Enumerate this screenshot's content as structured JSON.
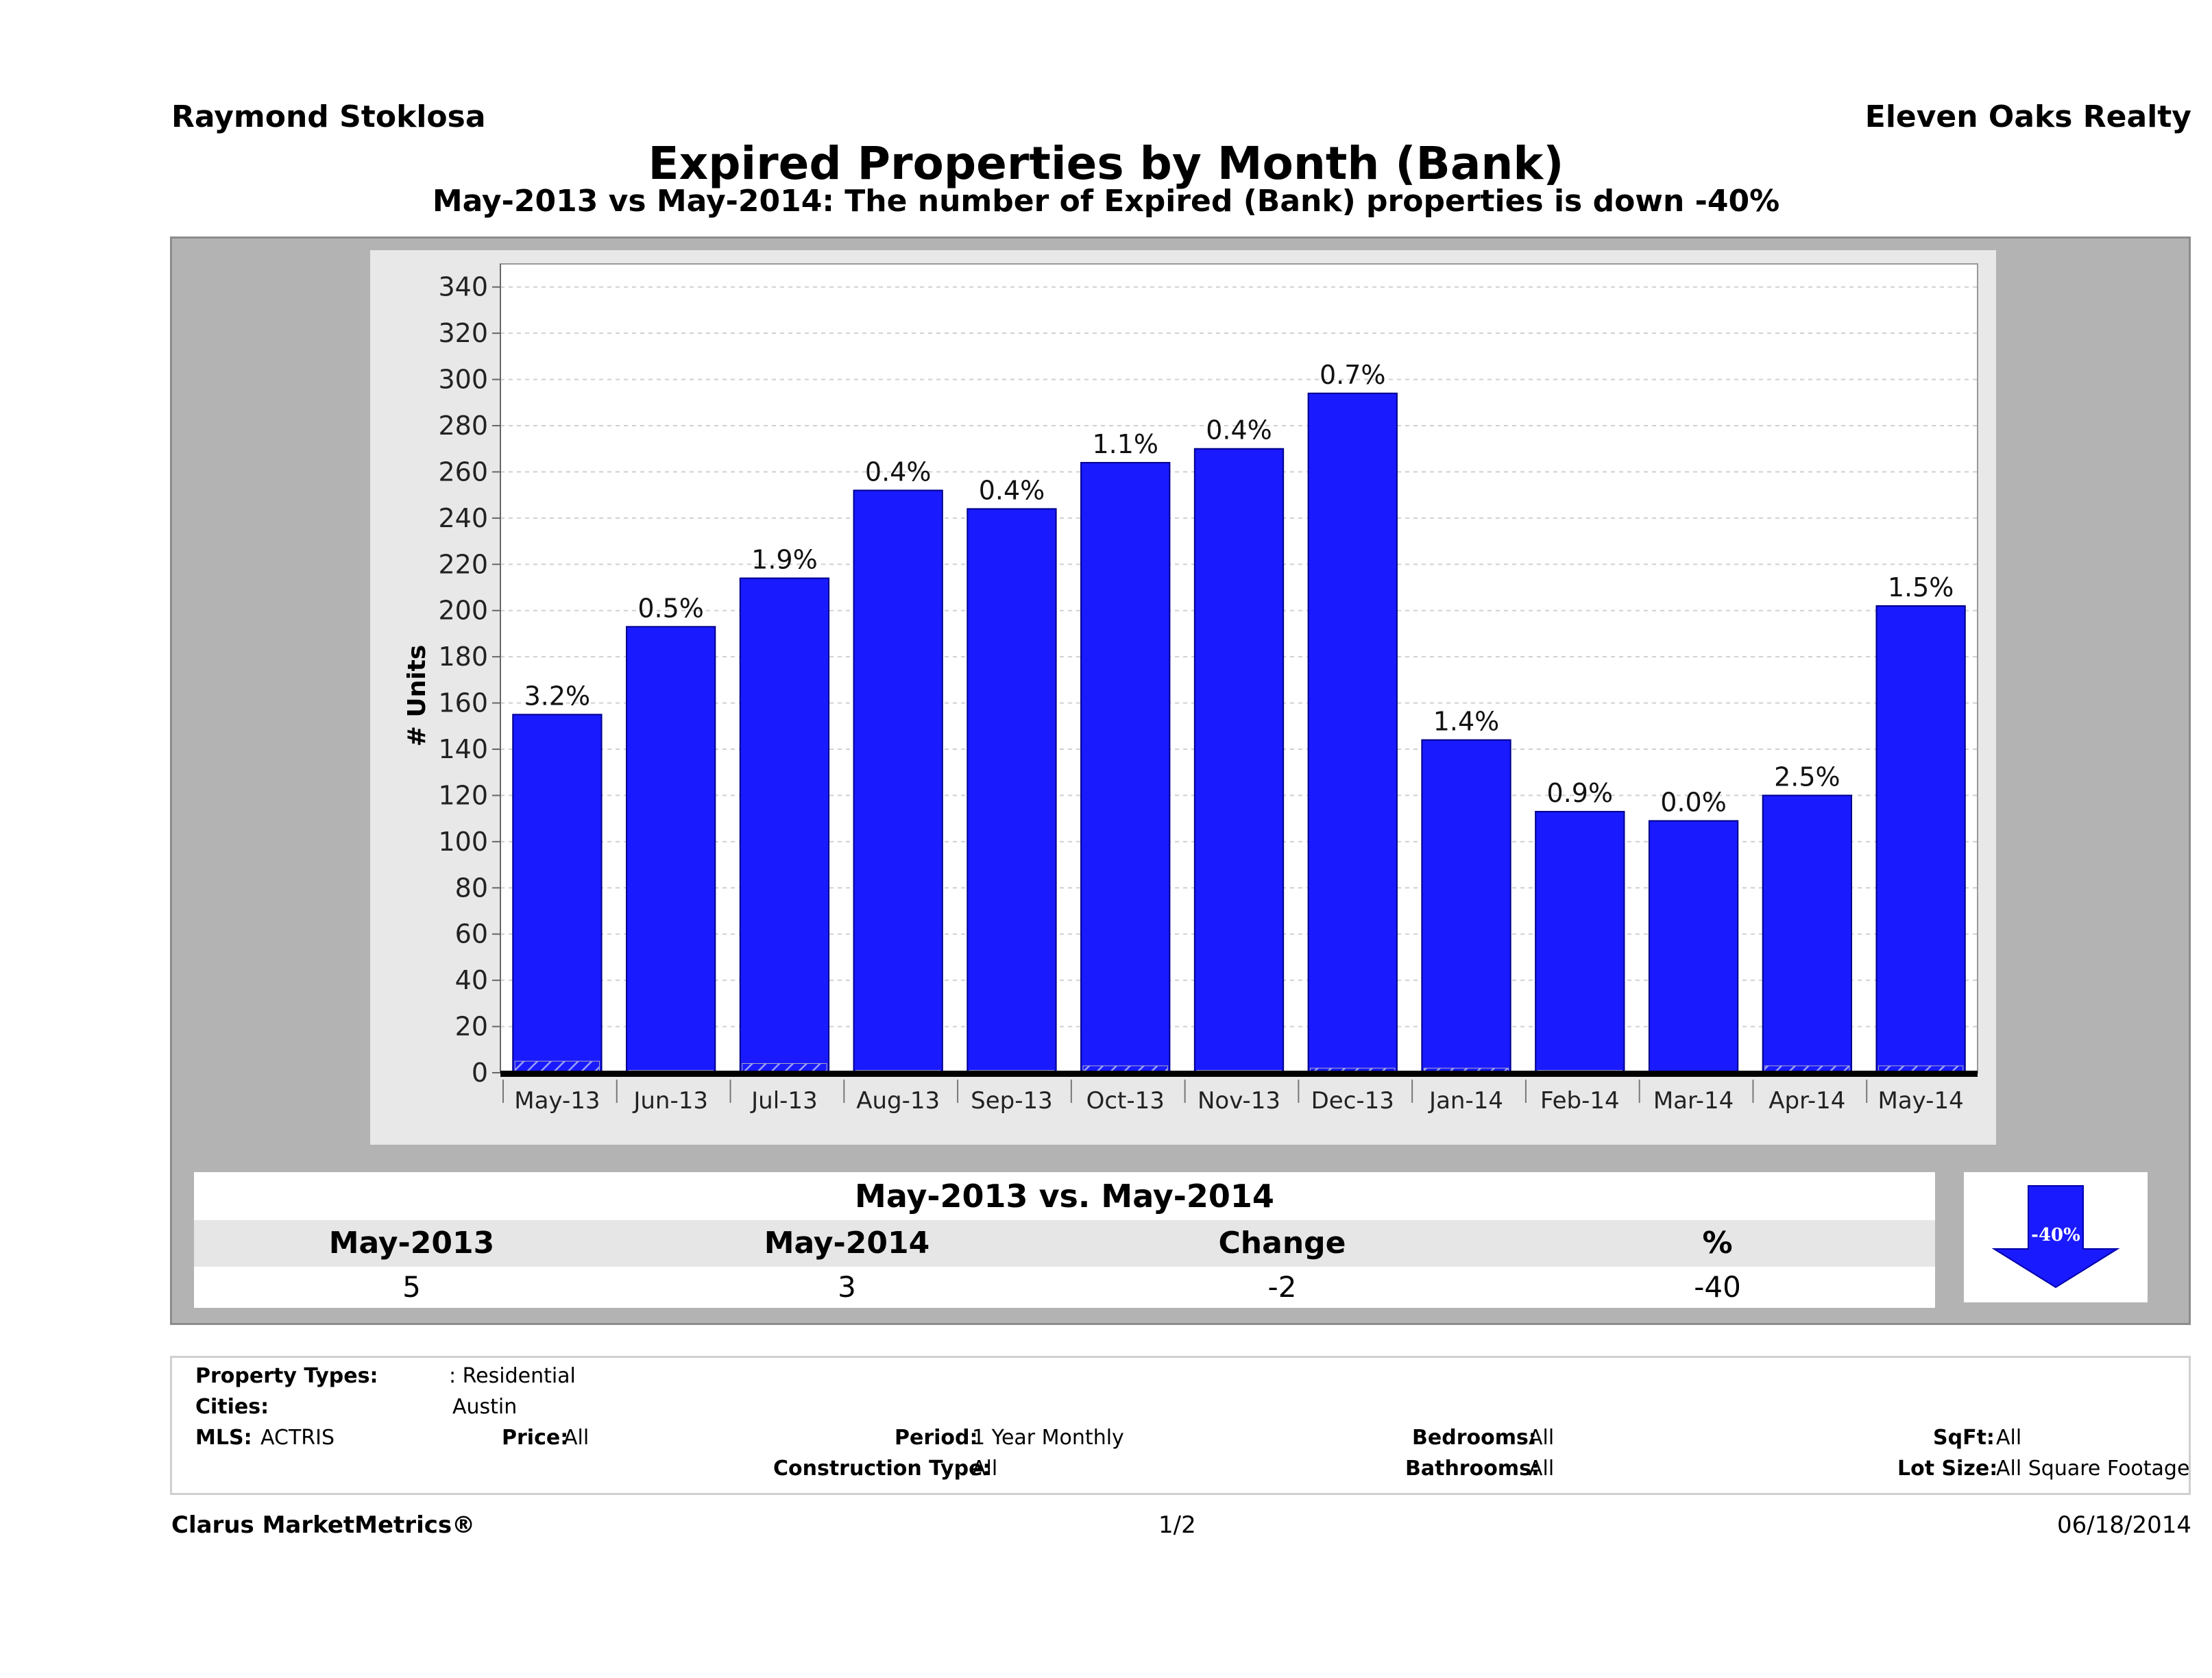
{
  "header": {
    "agent": "Raymond Stoklosa",
    "brokerage": "Eleven Oaks Realty",
    "title": "Expired Properties by Month (Bank)",
    "subtitle": "May-2013 vs May-2014: The number of Expired (Bank)  properties is down -40%"
  },
  "chart_data": {
    "type": "bar",
    "ylabel": "# Units",
    "ylim": [
      0,
      340
    ],
    "yticks": [
      0,
      20,
      40,
      60,
      80,
      100,
      120,
      140,
      160,
      180,
      200,
      220,
      240,
      260,
      280,
      300,
      320,
      340
    ],
    "categories": [
      "May-13",
      "Jun-13",
      "Jul-13",
      "Aug-13",
      "Sep-13",
      "Oct-13",
      "Nov-13",
      "Dec-13",
      "Jan-14",
      "Feb-14",
      "Mar-14",
      "Apr-14",
      "May-14"
    ],
    "values": [
      155,
      193,
      214,
      252,
      244,
      264,
      270,
      294,
      144,
      113,
      109,
      120,
      202
    ],
    "bank_values": [
      5,
      1,
      4,
      1,
      1,
      3,
      1,
      2,
      2,
      1,
      0,
      3,
      3
    ],
    "bar_labels": [
      "3.2%",
      "0.5%",
      "1.9%",
      "0.4%",
      "0.4%",
      "1.1%",
      "0.4%",
      "0.7%",
      "1.4%",
      "0.9%",
      "0.0%",
      "2.5%",
      "1.5%"
    ],
    "grid": true,
    "bar_color": "#1a1aff"
  },
  "comparison": {
    "title": "May-2013 vs. May-2014",
    "headers": [
      "May-2013",
      "May-2014",
      "Change",
      "%"
    ],
    "values": [
      "5",
      "3",
      "-2",
      "-40"
    ],
    "arrow_label": "-40%",
    "arrow_color": "#1a1aff"
  },
  "criteria": {
    "property_types_label": "Property Types:",
    "property_types_value": ": Residential",
    "cities_label": "Cities:",
    "cities_value": "Austin",
    "mls_label": "MLS:",
    "mls_value": "ACTRIS",
    "price_label": "Price:",
    "price_value": "All",
    "period_label": "Period:",
    "period_value": "1 Year Monthly",
    "construction_label": "Construction Type:",
    "construction_value": "All",
    "bedrooms_label": "Bedrooms:",
    "bedrooms_value": "All",
    "bathrooms_label": "Bathrooms:",
    "bathrooms_value": "All",
    "sqft_label": "SqFt:",
    "sqft_value": "All",
    "lotsize_label": "Lot Size:",
    "lotsize_value": "All Square Footage"
  },
  "footer": {
    "brand": "Clarus MarketMetrics®",
    "page": "1/2",
    "date": "06/18/2014"
  }
}
